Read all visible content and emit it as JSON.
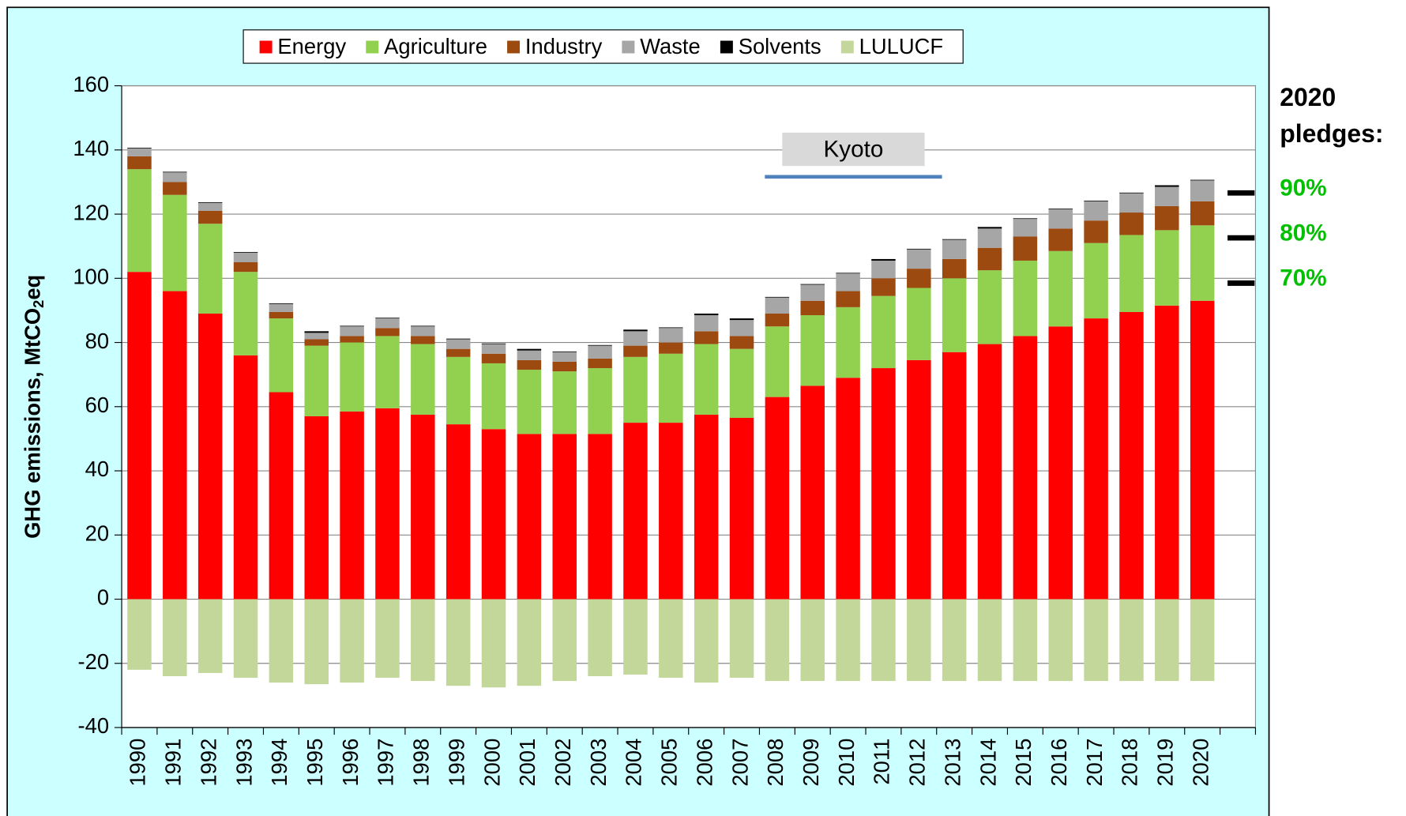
{
  "chart_data": {
    "type": "stacked_bar",
    "y_label": [
      "GHG emissions, MtCO",
      "2",
      "eq"
    ],
    "categories": [
      "1990",
      "1991",
      "1992",
      "1993",
      "1994",
      "1995",
      "1996",
      "1997",
      "1998",
      "1999",
      "2000",
      "2001",
      "2002",
      "2003",
      "2004",
      "2005",
      "2006",
      "2007",
      "2008",
      "2009",
      "2010",
      "2011",
      "2012",
      "2013",
      "2014",
      "2015",
      "2016",
      "2017",
      "2018",
      "2019",
      "2020",
      null
    ],
    "series": [
      {
        "name": "Energy",
        "color": "#ff0000",
        "values": [
          102,
          96,
          89,
          76,
          64.5,
          57,
          58.5,
          59.5,
          57.5,
          54.5,
          53,
          51.5,
          51.5,
          51.5,
          55,
          55,
          57.5,
          56.5,
          63,
          66.5,
          69,
          72,
          74.5,
          77,
          79.5,
          82,
          85,
          87.5,
          89.5,
          91.5,
          93,
          null
        ]
      },
      {
        "name": "Agriculture",
        "color": "#92d050",
        "values": [
          32,
          30,
          28,
          26,
          23,
          22,
          21.5,
          22.5,
          22,
          21,
          20.5,
          20,
          19.5,
          20.5,
          20.5,
          21.5,
          22,
          21.5,
          22,
          22,
          22,
          22.5,
          22.5,
          23,
          23,
          23.5,
          23.5,
          23.5,
          24,
          23.5,
          23.5,
          null
        ]
      },
      {
        "name": "Industry",
        "color": "#9c4a10",
        "values": [
          4,
          4,
          4,
          3,
          2,
          2,
          2,
          2.5,
          2.5,
          2.5,
          3,
          3,
          3,
          3,
          3.5,
          3.5,
          4,
          4,
          4,
          4.5,
          5,
          5.5,
          6,
          6,
          7,
          7.5,
          7,
          7,
          7,
          7.5,
          7.5,
          null
        ]
      },
      {
        "name": "Waste",
        "color": "#a6a6a6",
        "values": [
          2.5,
          3,
          2.5,
          3,
          2.5,
          2,
          3,
          3,
          3,
          3,
          3,
          3,
          3,
          4,
          4.5,
          4.5,
          5,
          5,
          5,
          5,
          5.5,
          5.5,
          6,
          6,
          6,
          5.5,
          6,
          6,
          6,
          6,
          6.5,
          null
        ]
      },
      {
        "name": "Solvents",
        "color": "#000000",
        "values": [
          0.2,
          0.2,
          0.2,
          0.2,
          0.2,
          0.5,
          0.2,
          0.2,
          0.2,
          0.2,
          0.2,
          0.5,
          0.2,
          0.2,
          0.5,
          0.2,
          0.5,
          0.5,
          0.2,
          0.2,
          0.2,
          0.5,
          0.2,
          0.2,
          0.5,
          0.2,
          0.2,
          0.2,
          0.2,
          0.5,
          0.2,
          null
        ]
      },
      {
        "name": "LULUCF",
        "color": "#c4d79b",
        "values": [
          -22,
          -24,
          -23,
          -24.5,
          -26,
          -26.5,
          -26,
          -24.5,
          -25.5,
          -27,
          -27.5,
          -27,
          -25.5,
          -24,
          -23.5,
          -24.5,
          -26,
          -24.5,
          -25.5,
          -25.5,
          -25.5,
          -25.5,
          -25.5,
          -25.5,
          -25.5,
          -25.5,
          -25.5,
          -25.5,
          -25.5,
          -25.5,
          -25.5,
          null
        ]
      }
    ],
    "ylim": [
      -40,
      160
    ],
    "yticks": [
      -40,
      -20,
      0,
      20,
      40,
      60,
      80,
      100,
      120,
      140,
      160
    ],
    "grid": true,
    "kyoto": {
      "label": "Kyoto",
      "start": "2008",
      "end": "2012",
      "color": "#4f81bd"
    },
    "pledges_title": [
      "2020",
      "pledges:"
    ],
    "pledges": [
      {
        "label": "90%",
        "value": 126.6
      },
      {
        "label": "80%",
        "value": 112.6
      },
      {
        "label": "70%",
        "value": 98.5
      }
    ],
    "pledge_color": "#00c000"
  }
}
